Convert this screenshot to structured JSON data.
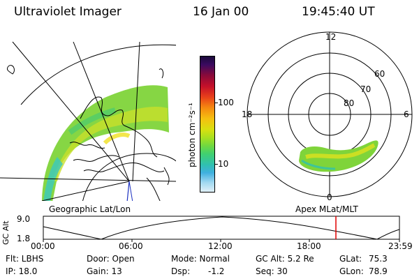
{
  "header": {
    "instrument": "Ultraviolet Imager",
    "date": "16 Jan 00",
    "time": "19:45:40 UT"
  },
  "colorbar": {
    "label": "photon cm⁻²s⁻¹",
    "ticks": [
      "100",
      "10"
    ],
    "colors_top_to_bottom": [
      "#1a0a3a",
      "#3a0a60",
      "#8a0a3a",
      "#c4102a",
      "#e8401a",
      "#f58a10",
      "#f5c010",
      "#d8e010",
      "#a8e020",
      "#70d840",
      "#40d070",
      "#30c0b0",
      "#40b0e0",
      "#a0d8f0",
      "#e0f0f8"
    ]
  },
  "geo_panel": {
    "caption": "Geographic Lat/Lon"
  },
  "polar_panel": {
    "caption": "Apex MLat/MLT",
    "mlt_labels": {
      "top": "12",
      "left": "18",
      "right": "6",
      "bottom": "0"
    },
    "lat_labels": [
      "60",
      "70",
      "80"
    ]
  },
  "altitude_plot": {
    "ylabel": "GC Alt",
    "yticks": [
      "9.0",
      "1.8"
    ],
    "xticks": [
      "00:00",
      "06:00",
      "12:00",
      "18:00",
      "23:59"
    ],
    "marker_color": "#e00000"
  },
  "info": {
    "flt": "Flt: LBHS",
    "ip": "IP: 18.0",
    "door": "Door: Open",
    "gain": "Gain: 13",
    "mode": "Mode: Normal",
    "dsp": "Dsp:",
    "dsp_value": "-1.2",
    "gc_alt": "GC Alt: 5.2 Re",
    "seq": "Seq: 30",
    "glat": "GLat:",
    "glat_value": "75.3",
    "glon": "GLon:",
    "glon_value": "78.9"
  }
}
